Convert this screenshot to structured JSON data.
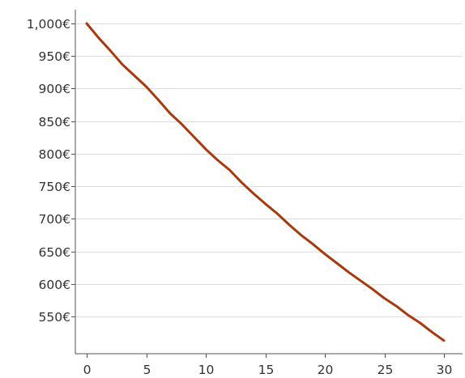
{
  "chart_data": {
    "type": "line",
    "title": "",
    "xlabel": "",
    "ylabel": "",
    "xlim": [
      0,
      31
    ],
    "ylim": [
      500,
      1000
    ],
    "grid": true,
    "legend": "none",
    "x_ticks": [
      {
        "value": 0,
        "label": "0"
      },
      {
        "value": 5,
        "label": "5"
      },
      {
        "value": 10,
        "label": "10"
      },
      {
        "value": 15,
        "label": "15"
      },
      {
        "value": 20,
        "label": "20"
      },
      {
        "value": 25,
        "label": "25"
      },
      {
        "value": 30,
        "label": "30"
      }
    ],
    "y_ticks": [
      {
        "value": 550,
        "label": "550€"
      },
      {
        "value": 600,
        "label": "600€"
      },
      {
        "value": 650,
        "label": "650€"
      },
      {
        "value": 700,
        "label": "700€"
      },
      {
        "value": 750,
        "label": "750€"
      },
      {
        "value": 800,
        "label": "800€"
      },
      {
        "value": 850,
        "label": "850€"
      },
      {
        "value": 900,
        "label": "900€"
      },
      {
        "value": 950,
        "label": "950€"
      },
      {
        "value": 1000,
        "label": "1,000€"
      }
    ],
    "series": [
      {
        "color": "#a63a0e",
        "x": [
          0,
          1,
          2,
          3,
          4,
          5,
          6,
          7,
          8,
          9,
          10,
          11,
          12,
          13,
          14,
          15,
          16,
          17,
          18,
          19,
          20,
          21,
          22,
          23,
          24,
          25,
          26,
          27,
          28,
          29,
          30
        ],
        "values": [
          1000,
          978,
          958,
          937,
          920,
          903,
          883,
          862,
          845,
          826,
          807,
          790,
          775,
          756,
          739,
          723,
          708,
          691,
          675,
          661,
          646,
          632,
          618,
          605,
          592,
          578,
          566,
          552,
          540,
          526,
          513
        ]
      }
    ]
  }
}
